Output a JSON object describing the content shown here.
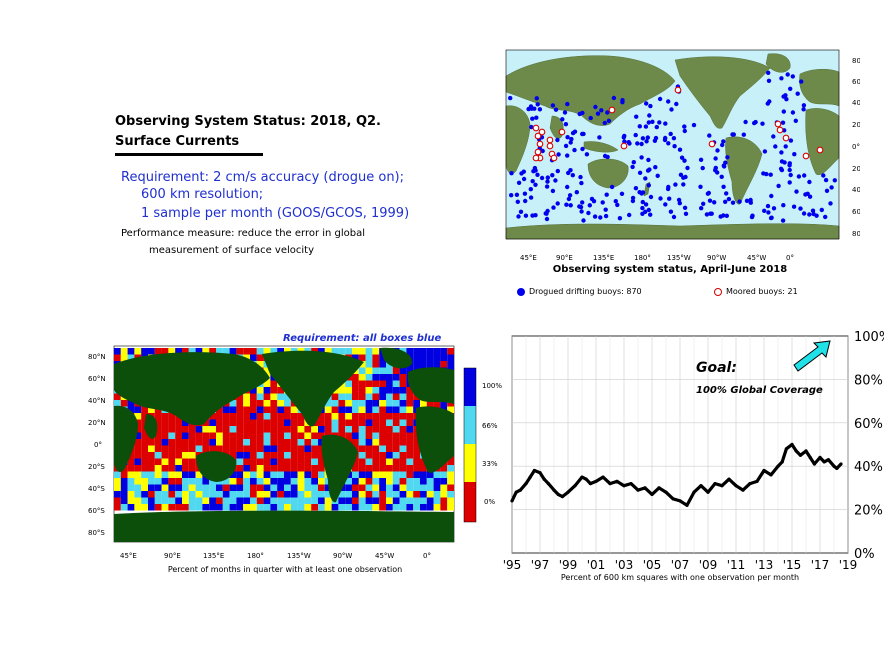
{
  "status": {
    "title": "Observing System Status:  2018, Q2.",
    "subtitle": "Surface Currents",
    "requirement_lines": [
      "Requirement: 2 cm/s accuracy (drogue on);",
      "600 km resolution;",
      "1 sample per month (GOOS/GCOS, 1999)"
    ],
    "performance_lines": [
      "Performance measure: reduce the error in global",
      "measurement of surface velocity"
    ]
  },
  "top_map": {
    "caption": "Observing system status, April-June 2018",
    "lon_ticks": [
      "45°E",
      "90°E",
      "135°E",
      "180°",
      "135°W",
      "90°W",
      "45°W",
      "0°"
    ],
    "lat_ticks": [
      "80°N",
      "60°N",
      "40°N",
      "20°N",
      "0°",
      "20°S",
      "40°S",
      "60°S",
      "80°S"
    ],
    "legend": {
      "drifters": "Drogued drifting buoys: 870",
      "moored": "Moored buoys: 21"
    },
    "colors": {
      "ocean": "#c8f0f8",
      "drifter": "#0000ee",
      "moored": "#d40000"
    }
  },
  "bottom_map": {
    "title": "Requirement: all boxes blue",
    "caption": "Percent of months in quarter with at least one observation",
    "lon_ticks": [
      "45°E",
      "90°E",
      "135°E",
      "180°",
      "135°W",
      "90°W",
      "45°W",
      "0°"
    ],
    "lat_ticks": [
      "80°N",
      "60°N",
      "40°N",
      "20°N",
      "0°",
      "20°S",
      "40°S",
      "60°S",
      "80°S"
    ],
    "colorbar_labels": [
      "100%",
      "66%",
      "33%",
      "0%"
    ],
    "colors": {
      "100": "#0000e0",
      "66": "#50d8f0",
      "33": "#ffff00",
      "0": "#dd0000",
      "land": "#0b4f0b"
    }
  },
  "chart_data": {
    "type": "line",
    "xlabel": "Percent of 600 km squares with one observation per month",
    "x_ticks": [
      "'95",
      "'97",
      "'99",
      "'01",
      "'03",
      "'05",
      "'07",
      "'09",
      "'11",
      "'13",
      "'15",
      "'17",
      "'19"
    ],
    "y_ticks": [
      "0%",
      "20%",
      "40%",
      "60%",
      "80%",
      "100%"
    ],
    "xlim": [
      1995,
      2019
    ],
    "ylim": [
      0,
      100
    ],
    "goal_title": "Goal:",
    "goal_text": "100% Global Coverage",
    "x": [
      1995.0,
      1995.3,
      1995.6,
      1996.0,
      1996.3,
      1996.6,
      1997.0,
      1997.3,
      1997.6,
      1998.0,
      1998.3,
      1998.6,
      1999.0,
      1999.5,
      2000.0,
      2000.3,
      2000.6,
      2001.0,
      2001.5,
      2002.0,
      2002.5,
      2003.0,
      2003.5,
      2004.0,
      2004.5,
      2005.0,
      2005.5,
      2006.0,
      2006.5,
      2007.0,
      2007.5,
      2008.0,
      2008.5,
      2009.0,
      2009.5,
      2010.0,
      2010.5,
      2011.0,
      2011.5,
      2012.0,
      2012.5,
      2013.0,
      2013.5,
      2014.0,
      2014.3,
      2014.6,
      2015.0,
      2015.3,
      2015.6,
      2016.0,
      2016.3,
      2016.6,
      2017.0,
      2017.3,
      2017.6,
      2018.0,
      2018.2,
      2018.5
    ],
    "values": [
      24,
      28,
      29,
      32,
      35,
      38,
      37,
      34,
      32,
      29,
      27,
      26,
      28,
      31,
      35,
      34,
      32,
      33,
      35,
      32,
      33,
      31,
      32,
      29,
      30,
      27,
      30,
      28,
      25,
      24,
      22,
      28,
      31,
      28,
      32,
      31,
      34,
      31,
      29,
      32,
      33,
      38,
      36,
      40,
      42,
      48,
      50,
      47,
      45,
      47,
      44,
      41,
      44,
      42,
      43,
      40,
      39,
      41
    ]
  }
}
